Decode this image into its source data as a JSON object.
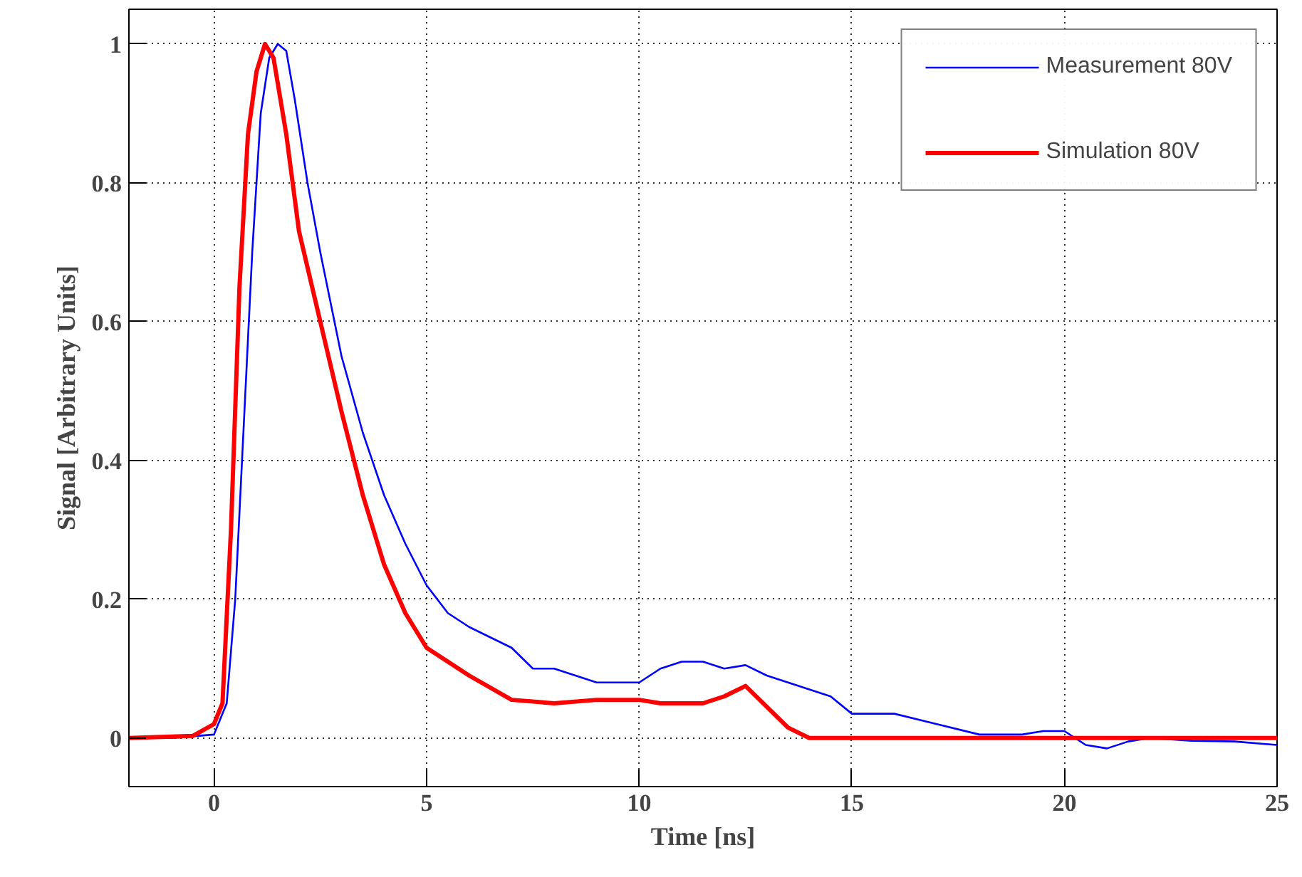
{
  "chart_data": {
    "type": "line",
    "xlabel": "Time [ns]",
    "ylabel": "Signal [Arbitrary Units]",
    "xlim": [
      -2,
      25
    ],
    "ylim": [
      -0.07,
      1.05
    ],
    "xticks": [
      0,
      5,
      10,
      15,
      20,
      25
    ],
    "yticks": [
      0,
      0.2,
      0.4,
      0.6,
      0.8,
      1
    ],
    "grid": true,
    "legend": "top right",
    "line_style": "solid",
    "series": [
      {
        "name": "Measurement 80V",
        "color": "#0000ff",
        "x": [
          -2,
          -1,
          0,
          0.3,
          0.5,
          0.7,
          0.9,
          1.1,
          1.3,
          1.5,
          1.7,
          1.9,
          2.2,
          2.5,
          3,
          3.5,
          4,
          4.5,
          5,
          5.5,
          6,
          7,
          7.5,
          8,
          9,
          9.5,
          10,
          10.5,
          11,
          11.5,
          12,
          12.5,
          13,
          14,
          14.5,
          15,
          16,
          17,
          18,
          19,
          19.5,
          20,
          20.5,
          21,
          21.5,
          22,
          23,
          24,
          25
        ],
        "values": [
          0,
          0,
          0.005,
          0.05,
          0.2,
          0.45,
          0.7,
          0.9,
          0.98,
          1.0,
          0.99,
          0.92,
          0.8,
          0.7,
          0.55,
          0.44,
          0.35,
          0.28,
          0.22,
          0.18,
          0.16,
          0.13,
          0.1,
          0.1,
          0.08,
          0.08,
          0.08,
          0.1,
          0.11,
          0.11,
          0.1,
          0.105,
          0.09,
          0.07,
          0.06,
          0.035,
          0.035,
          0.02,
          0.005,
          0.005,
          0.01,
          0.01,
          -0.01,
          -0.015,
          -0.005,
          0,
          -0.004,
          -0.005,
          -0.01
        ]
      },
      {
        "name": "Simulation 80V",
        "color": "#ff0000",
        "x": [
          -2,
          -0.5,
          0,
          0.2,
          0.4,
          0.6,
          0.8,
          1.0,
          1.2,
          1.4,
          1.7,
          2,
          2.5,
          3,
          3.5,
          4,
          4.5,
          5,
          6,
          7,
          8,
          9,
          10,
          10.5,
          11.5,
          12,
          12.5,
          13,
          13.5,
          14,
          25
        ],
        "values": [
          0,
          0.003,
          0.02,
          0.05,
          0.3,
          0.65,
          0.87,
          0.96,
          1.0,
          0.98,
          0.87,
          0.73,
          0.6,
          0.47,
          0.35,
          0.25,
          0.18,
          0.13,
          0.09,
          0.055,
          0.05,
          0.055,
          0.055,
          0.05,
          0.05,
          0.06,
          0.075,
          0.045,
          0.015,
          0,
          0
        ]
      }
    ]
  }
}
